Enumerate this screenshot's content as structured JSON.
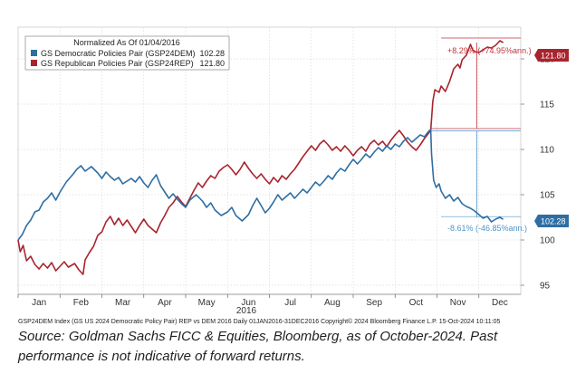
{
  "chart_data": {
    "type": "line",
    "title": "",
    "xlabel": "2016",
    "ylabel": "",
    "ylim": [
      94,
      123.5
    ],
    "y_ticks": [
      95,
      100,
      105,
      110,
      115,
      120
    ],
    "x_ticks": [
      "Jan",
      "Feb",
      "Mar",
      "Apr",
      "May",
      "Jun",
      "Jul",
      "Aug",
      "Sep",
      "Oct",
      "Nov",
      "Dec"
    ],
    "year_label": "2016",
    "legend": {
      "title": "Normalized As Of 01/04/2016",
      "entries": [
        {
          "label": "GS Democratic Policies Pair (GSP24DEM)",
          "value": "102.28"
        },
        {
          "label": "GS Republican Policies Pair (GSP24REP)",
          "value": "121.80"
        }
      ]
    },
    "series": [
      {
        "name": "GS Democratic Policies Pair (GSP24DEM)",
        "color": "#2f6ea3",
        "last_value_label": "102.28",
        "points": [
          [
            0.0,
            100.0
          ],
          [
            0.1,
            100.6
          ],
          [
            0.2,
            101.6
          ],
          [
            0.3,
            102.2
          ],
          [
            0.4,
            103.1
          ],
          [
            0.5,
            103.3
          ],
          [
            0.6,
            104.2
          ],
          [
            0.7,
            104.6
          ],
          [
            0.8,
            105.2
          ],
          [
            0.9,
            104.4
          ],
          [
            1.0,
            105.3
          ],
          [
            1.15,
            106.4
          ],
          [
            1.3,
            107.2
          ],
          [
            1.4,
            107.8
          ],
          [
            1.5,
            108.2
          ],
          [
            1.6,
            107.6
          ],
          [
            1.75,
            108.1
          ],
          [
            1.9,
            107.4
          ],
          [
            2.0,
            106.8
          ],
          [
            2.1,
            107.5
          ],
          [
            2.2,
            107.0
          ],
          [
            2.3,
            106.6
          ],
          [
            2.4,
            106.9
          ],
          [
            2.5,
            106.2
          ],
          [
            2.6,
            106.5
          ],
          [
            2.7,
            106.8
          ],
          [
            2.8,
            106.4
          ],
          [
            2.9,
            107.0
          ],
          [
            3.0,
            106.3
          ],
          [
            3.1,
            105.8
          ],
          [
            3.2,
            106.6
          ],
          [
            3.3,
            107.2
          ],
          [
            3.4,
            106.0
          ],
          [
            3.5,
            105.3
          ],
          [
            3.6,
            104.6
          ],
          [
            3.7,
            105.1
          ],
          [
            3.8,
            104.5
          ],
          [
            3.9,
            104.0
          ],
          [
            4.0,
            103.6
          ],
          [
            4.1,
            104.4
          ],
          [
            4.25,
            105.0
          ],
          [
            4.4,
            104.3
          ],
          [
            4.5,
            103.6
          ],
          [
            4.6,
            104.1
          ],
          [
            4.7,
            103.3
          ],
          [
            4.85,
            102.7
          ],
          [
            5.0,
            103.1
          ],
          [
            5.1,
            103.6
          ],
          [
            5.2,
            102.7
          ],
          [
            5.35,
            102.1
          ],
          [
            5.5,
            102.8
          ],
          [
            5.6,
            103.8
          ],
          [
            5.7,
            104.6
          ],
          [
            5.8,
            103.8
          ],
          [
            5.9,
            103.0
          ],
          [
            6.0,
            103.5
          ],
          [
            6.1,
            104.2
          ],
          [
            6.2,
            105.0
          ],
          [
            6.3,
            104.4
          ],
          [
            6.4,
            104.8
          ],
          [
            6.5,
            105.2
          ],
          [
            6.6,
            104.6
          ],
          [
            6.7,
            105.1
          ],
          [
            6.8,
            105.6
          ],
          [
            6.9,
            105.2
          ],
          [
            7.0,
            105.8
          ],
          [
            7.1,
            106.4
          ],
          [
            7.2,
            106.0
          ],
          [
            7.3,
            106.5
          ],
          [
            7.4,
            107.1
          ],
          [
            7.5,
            106.7
          ],
          [
            7.6,
            107.4
          ],
          [
            7.7,
            107.9
          ],
          [
            7.8,
            107.6
          ],
          [
            7.9,
            108.3
          ],
          [
            8.0,
            108.9
          ],
          [
            8.1,
            108.4
          ],
          [
            8.2,
            108.9
          ],
          [
            8.3,
            109.5
          ],
          [
            8.4,
            109.1
          ],
          [
            8.5,
            109.7
          ],
          [
            8.6,
            110.2
          ],
          [
            8.7,
            109.8
          ],
          [
            8.8,
            110.4
          ],
          [
            8.9,
            110.0
          ],
          [
            9.0,
            110.6
          ],
          [
            9.1,
            110.3
          ],
          [
            9.2,
            110.9
          ],
          [
            9.3,
            111.3
          ],
          [
            9.4,
            110.8
          ],
          [
            9.5,
            111.2
          ],
          [
            9.6,
            111.6
          ],
          [
            9.7,
            111.4
          ],
          [
            9.8,
            112.0
          ],
          [
            9.85,
            112.2
          ],
          [
            9.87,
            109.5
          ],
          [
            9.92,
            106.6
          ],
          [
            9.98,
            105.8
          ],
          [
            10.05,
            106.2
          ],
          [
            10.1,
            105.4
          ],
          [
            10.2,
            104.6
          ],
          [
            10.3,
            105.0
          ],
          [
            10.4,
            104.3
          ],
          [
            10.5,
            104.7
          ],
          [
            10.6,
            104.0
          ],
          [
            10.7,
            103.7
          ],
          [
            10.8,
            103.5
          ],
          [
            10.9,
            103.2
          ],
          [
            11.0,
            102.8
          ],
          [
            11.1,
            102.4
          ],
          [
            11.2,
            102.6
          ],
          [
            11.3,
            102.0
          ],
          [
            11.4,
            102.3
          ],
          [
            11.5,
            102.5
          ],
          [
            11.58,
            102.28
          ]
        ]
      },
      {
        "name": "GS Republican Policies Pair (GSP24REP)",
        "color": "#a8242d",
        "last_value_label": "121.80",
        "points": [
          [
            0.0,
            100.0
          ],
          [
            0.05,
            98.7
          ],
          [
            0.12,
            99.4
          ],
          [
            0.2,
            97.7
          ],
          [
            0.3,
            98.2
          ],
          [
            0.4,
            97.3
          ],
          [
            0.5,
            96.8
          ],
          [
            0.6,
            97.4
          ],
          [
            0.7,
            96.9
          ],
          [
            0.8,
            97.5
          ],
          [
            0.9,
            96.6
          ],
          [
            1.0,
            97.1
          ],
          [
            1.1,
            97.6
          ],
          [
            1.2,
            97.0
          ],
          [
            1.35,
            97.4
          ],
          [
            1.45,
            96.7
          ],
          [
            1.55,
            96.2
          ],
          [
            1.6,
            97.8
          ],
          [
            1.7,
            98.6
          ],
          [
            1.8,
            99.3
          ],
          [
            1.9,
            100.5
          ],
          [
            2.0,
            100.9
          ],
          [
            2.1,
            102.0
          ],
          [
            2.2,
            102.6
          ],
          [
            2.3,
            101.7
          ],
          [
            2.4,
            102.4
          ],
          [
            2.5,
            101.6
          ],
          [
            2.6,
            102.2
          ],
          [
            2.7,
            101.5
          ],
          [
            2.8,
            100.8
          ],
          [
            2.9,
            101.6
          ],
          [
            3.0,
            102.3
          ],
          [
            3.1,
            101.6
          ],
          [
            3.2,
            101.2
          ],
          [
            3.3,
            100.8
          ],
          [
            3.4,
            101.9
          ],
          [
            3.5,
            102.7
          ],
          [
            3.6,
            103.6
          ],
          [
            3.7,
            104.1
          ],
          [
            3.8,
            104.8
          ],
          [
            3.9,
            104.2
          ],
          [
            4.0,
            103.7
          ],
          [
            4.1,
            104.6
          ],
          [
            4.2,
            105.5
          ],
          [
            4.3,
            106.3
          ],
          [
            4.4,
            105.8
          ],
          [
            4.5,
            106.5
          ],
          [
            4.6,
            107.1
          ],
          [
            4.7,
            106.8
          ],
          [
            4.8,
            107.6
          ],
          [
            4.9,
            108.0
          ],
          [
            5.0,
            108.3
          ],
          [
            5.1,
            107.8
          ],
          [
            5.2,
            107.2
          ],
          [
            5.3,
            107.8
          ],
          [
            5.4,
            108.6
          ],
          [
            5.5,
            107.9
          ],
          [
            5.6,
            107.3
          ],
          [
            5.7,
            106.8
          ],
          [
            5.8,
            107.3
          ],
          [
            5.9,
            106.7
          ],
          [
            6.0,
            106.2
          ],
          [
            6.1,
            106.9
          ],
          [
            6.2,
            106.4
          ],
          [
            6.3,
            107.1
          ],
          [
            6.4,
            106.7
          ],
          [
            6.5,
            107.3
          ],
          [
            6.6,
            107.8
          ],
          [
            6.7,
            108.5
          ],
          [
            6.8,
            109.2
          ],
          [
            6.9,
            109.8
          ],
          [
            7.0,
            110.4
          ],
          [
            7.1,
            109.9
          ],
          [
            7.2,
            110.6
          ],
          [
            7.3,
            111.0
          ],
          [
            7.4,
            110.5
          ],
          [
            7.5,
            109.9
          ],
          [
            7.6,
            110.3
          ],
          [
            7.7,
            109.8
          ],
          [
            7.8,
            110.4
          ],
          [
            7.9,
            109.9
          ],
          [
            8.0,
            109.3
          ],
          [
            8.1,
            109.9
          ],
          [
            8.2,
            110.3
          ],
          [
            8.3,
            109.8
          ],
          [
            8.4,
            110.6
          ],
          [
            8.5,
            111.0
          ],
          [
            8.6,
            110.5
          ],
          [
            8.7,
            110.9
          ],
          [
            8.8,
            110.3
          ],
          [
            8.9,
            111.0
          ],
          [
            9.0,
            111.6
          ],
          [
            9.1,
            112.1
          ],
          [
            9.2,
            111.5
          ],
          [
            9.3,
            110.8
          ],
          [
            9.4,
            110.3
          ],
          [
            9.5,
            109.9
          ],
          [
            9.6,
            110.5
          ],
          [
            9.7,
            111.2
          ],
          [
            9.8,
            111.8
          ],
          [
            9.85,
            112.1
          ],
          [
            9.9,
            115.3
          ],
          [
            9.95,
            116.6
          ],
          [
            10.05,
            116.3
          ],
          [
            10.1,
            117.0
          ],
          [
            10.2,
            116.4
          ],
          [
            10.3,
            117.5
          ],
          [
            10.4,
            118.9
          ],
          [
            10.5,
            119.4
          ],
          [
            10.55,
            119.0
          ],
          [
            10.6,
            119.9
          ],
          [
            10.7,
            120.4
          ],
          [
            10.8,
            121.6
          ],
          [
            10.85,
            121.0
          ],
          [
            10.9,
            120.8
          ],
          [
            11.0,
            120.7
          ],
          [
            11.1,
            121.0
          ],
          [
            11.2,
            121.3
          ],
          [
            11.3,
            121.2
          ],
          [
            11.4,
            121.5
          ],
          [
            11.5,
            122.0
          ],
          [
            11.58,
            121.8
          ]
        ]
      }
    ],
    "annotations": [
      {
        "text": "+8.29% (+74.95%ann.)",
        "series": "GS Republican Policies Pair (GSP24REP)"
      },
      {
        "text": "-8.61% (-46.85%ann.)",
        "series": "GS Democratic Policies Pair (GSP24DEM)"
      }
    ],
    "reference_levels": {
      "election_level": 112.3,
      "rep_final": 121.8,
      "dem_final": 102.28
    },
    "grid": true,
    "footer": "GSP24DEM Index (GS US 2024 Democratic Policy Pair) REP vs DEM 2016  Daily 01JAN2016-31DEC2016  Copyright© 2024 Bloomberg Finance L.P.     15-Oct-2024 10:11:05"
  },
  "source_note": "Source: Goldman Sachs FICC & Equities, Bloomberg, as of October-2024. Past performance is not indicative of forward returns.",
  "colors": {
    "dem": "#2f6ea3",
    "rep": "#a8242d",
    "dem_light": "#4f95c9",
    "rep_light": "#c0343c"
  }
}
